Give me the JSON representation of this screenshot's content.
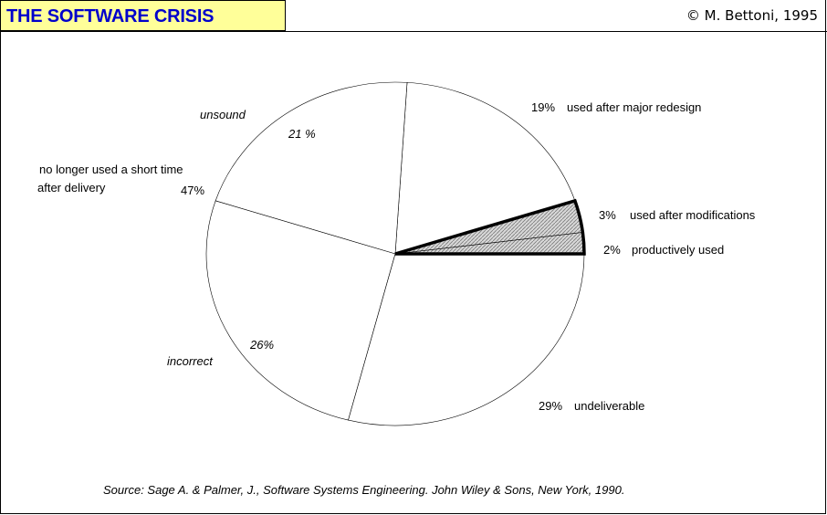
{
  "header": {
    "title": "THE SOFTWARE CRISIS",
    "copyright": "© M. Bettoni, 1995"
  },
  "chart_data": {
    "type": "pie",
    "slices": [
      {
        "label": "productively used",
        "value": 2,
        "value_label": "2%",
        "highlight": true
      },
      {
        "label": "used after modifications",
        "value": 3,
        "value_label": "3%",
        "highlight": true
      },
      {
        "label": "used after major redesign",
        "value": 19,
        "value_label": "19%",
        "highlight": false
      },
      {
        "label": "unsound",
        "value": 21,
        "value_label": "21 %",
        "highlight": false
      },
      {
        "label": "incorrect",
        "value": 26,
        "value_label": "26%",
        "highlight": false
      },
      {
        "label": "undeliverable",
        "value": 29,
        "value_label": "29%",
        "highlight": false
      }
    ],
    "group": {
      "label": "no longer used a short time after delivery",
      "label_line1": "no longer used a short time",
      "label_line2": "after delivery",
      "value": 47,
      "value_label": "47%"
    },
    "colors": {
      "outline": "#000000",
      "highlight_fill": "#bdbdbd",
      "title_bg": "#ffff99",
      "title_text": "#0000cc"
    }
  },
  "source": "Source:  Sage A. & Palmer, J., Software Systems Engineering. John Wiley & Sons, New York, 1990."
}
